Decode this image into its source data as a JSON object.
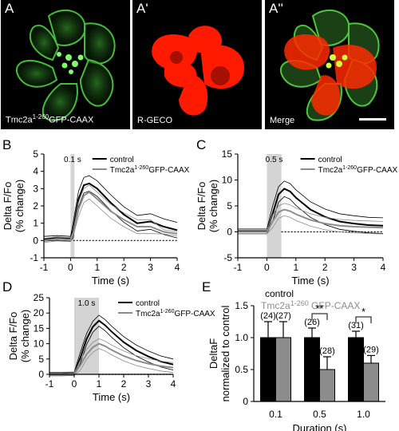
{
  "image_panels": [
    {
      "letter": "A",
      "caption_main": "Tmc2a",
      "caption_sup": "1-260",
      "caption_rest": "GFP-CAAX",
      "channel": "green"
    },
    {
      "letter": "A'",
      "caption_main": "R-GECO",
      "caption_sup": "",
      "caption_rest": "",
      "channel": "red"
    },
    {
      "letter": "A''",
      "caption_main": "Merge",
      "caption_sup": "",
      "caption_rest": "",
      "channel": "merge"
    }
  ],
  "colors": {
    "green": "#49c83c",
    "red": "#ff1a00",
    "control_line": "#000000",
    "tmc_line": "#8c8c8c",
    "stim_shade": "#d4d4d4",
    "bar_control": "#000000",
    "bar_tmc": "#8c8c8c"
  },
  "chart_data": [
    {
      "panel": "B",
      "type": "line",
      "stim_label": "0.1 s",
      "stim_start": 0,
      "stim_end": 0.1,
      "ylabel": [
        "Delta F/Fo",
        "(% change)"
      ],
      "xlabel": "Time (s)",
      "xlim": [
        -1,
        4
      ],
      "ylim": [
        -1,
        5
      ],
      "xticks": [
        "-1",
        "0",
        "1",
        "2",
        "3",
        "4"
      ],
      "yticks": [
        "-1",
        "0",
        "1",
        "2",
        "3",
        "4",
        "5"
      ],
      "legend": [
        {
          "label": "control",
          "sup": "",
          "rest": ""
        },
        {
          "label": "Tmc2a",
          "sup": "1-260",
          "rest": "GFP-CAAX"
        }
      ],
      "series": [
        {
          "name": "control",
          "x": [
            -1,
            -0.5,
            0,
            0.1,
            0.3,
            0.5,
            0.7,
            1.0,
            1.5,
            2.0,
            2.5,
            3.0,
            3.5,
            4.0
          ],
          "y": [
            0.1,
            0.15,
            0.1,
            0.6,
            2.4,
            3.2,
            3.3,
            3.0,
            2.2,
            1.5,
            1.0,
            1.1,
            0.8,
            0.6
          ],
          "sem": 0.45
        },
        {
          "name": "Tmc2a",
          "x": [
            -1,
            -0.5,
            0,
            0.1,
            0.3,
            0.5,
            0.7,
            1.0,
            1.5,
            2.0,
            2.5,
            3.0,
            3.5,
            4.0
          ],
          "y": [
            0.0,
            0.1,
            0.05,
            0.4,
            1.8,
            2.6,
            2.8,
            2.4,
            1.7,
            1.2,
            0.8,
            0.8,
            0.5,
            0.4
          ],
          "sem": 0.4
        }
      ]
    },
    {
      "panel": "C",
      "type": "line",
      "stim_label": "0.5 s",
      "stim_start": 0,
      "stim_end": 0.5,
      "ylabel": [
        "Delta F/Fo",
        "(% change)"
      ],
      "xlabel": "Time (s)",
      "xlim": [
        -1,
        4
      ],
      "ylim": [
        -5,
        15
      ],
      "xticks": [
        "-1",
        "0",
        "1",
        "2",
        "3",
        "4"
      ],
      "yticks": [
        "-5",
        "0",
        "5",
        "10",
        "15"
      ],
      "legend": [
        {
          "label": "control",
          "sup": "",
          "rest": ""
        },
        {
          "label": "Tmc2a",
          "sup": "1-260",
          "rest": "GFP-CAAX"
        }
      ],
      "series": [
        {
          "name": "control",
          "x": [
            -1,
            -0.5,
            0,
            0.2,
            0.4,
            0.6,
            0.8,
            1.0,
            1.5,
            2.0,
            2.5,
            3.0,
            3.5,
            4.0
          ],
          "y": [
            0.1,
            0.1,
            0.1,
            3.5,
            7.2,
            8.3,
            7.8,
            6.6,
            4.3,
            2.9,
            2.0,
            1.6,
            1.3,
            1.2
          ],
          "sem": 1.5
        },
        {
          "name": "Tmc2a",
          "x": [
            -1,
            -0.5,
            0,
            0.2,
            0.4,
            0.6,
            0.8,
            1.0,
            1.5,
            2.0,
            2.5,
            3.0,
            3.5,
            4.0
          ],
          "y": [
            0.0,
            0.0,
            0.0,
            2.0,
            3.8,
            4.3,
            4.0,
            3.4,
            2.3,
            1.6,
            1.2,
            1.0,
            0.9,
            0.8
          ],
          "sem": 1.2
        }
      ]
    },
    {
      "panel": "D",
      "type": "line",
      "stim_label": "1.0 s",
      "stim_start": 0,
      "stim_end": 1.0,
      "ylabel": [
        "Delta F/Fo",
        "(% change)"
      ],
      "xlabel": "Time (s)",
      "xlim": [
        -1,
        4
      ],
      "ylim": [
        0,
        25
      ],
      "xticks": [
        "-1",
        "0",
        "1",
        "2",
        "3",
        "4"
      ],
      "yticks": [
        "0",
        "5",
        "10",
        "15",
        "20",
        "25"
      ],
      "legend": [
        {
          "label": "control",
          "sup": "",
          "rest": ""
        },
        {
          "label": "Tmc2a",
          "sup": "1-260",
          "rest": "GFP-CAAX"
        }
      ],
      "series": [
        {
          "name": "control",
          "x": [
            -1,
            -0.5,
            0,
            0.25,
            0.5,
            0.75,
            1.0,
            1.25,
            1.5,
            2.0,
            2.5,
            3.0,
            3.5,
            4.0
          ],
          "y": [
            0.1,
            0.1,
            0.2,
            5.5,
            11.5,
            15.5,
            17.5,
            16.0,
            14.0,
            10.5,
            7.8,
            5.8,
            4.2,
            3.2
          ],
          "sem": 1.8
        },
        {
          "name": "Tmc2a",
          "x": [
            -1,
            -0.5,
            0,
            0.25,
            0.5,
            0.75,
            1.0,
            1.25,
            1.5,
            2.0,
            2.5,
            3.0,
            3.5,
            4.0
          ],
          "y": [
            0.0,
            0.0,
            0.1,
            3.0,
            6.5,
            8.8,
            10.0,
            9.2,
            8.0,
            6.0,
            4.5,
            3.5,
            2.7,
            2.2
          ],
          "sem": 1.6
        }
      ]
    },
    {
      "panel": "E",
      "type": "bar",
      "ylabel": [
        "DeltaF",
        "normalized to control"
      ],
      "xlabel": "Duration (s)",
      "ylim": [
        0,
        1.5
      ],
      "yticks": [
        "0",
        "0.5",
        "1.0",
        "1.5"
      ],
      "categories": [
        "0.1",
        "0.5",
        "1.0"
      ],
      "legend": [
        {
          "label": "control",
          "sup": "",
          "rest": ""
        },
        {
          "label": "Tmc2a",
          "sup": "1-260",
          "rest": " GFP-CAAX"
        }
      ],
      "series": [
        {
          "name": "control",
          "values": [
            1.0,
            1.0,
            1.0
          ],
          "err": [
            0.25,
            0.15,
            0.1
          ],
          "n": [
            "(24)",
            "(26)",
            "(31)"
          ]
        },
        {
          "name": "Tmc2a",
          "values": [
            1.0,
            0.5,
            0.6
          ],
          "err": [
            0.25,
            0.2,
            0.12
          ],
          "n": [
            "(27)",
            "(28)",
            "(29)"
          ]
        }
      ],
      "significance": [
        {
          "category": "0.5",
          "label": "**"
        },
        {
          "category": "1.0",
          "label": "*"
        }
      ]
    }
  ]
}
